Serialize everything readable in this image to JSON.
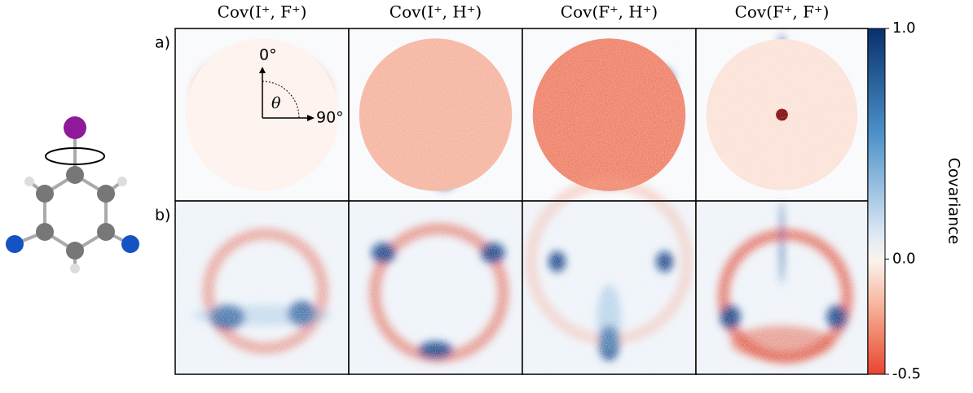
{
  "figure": {
    "columns": [
      "Cov(I⁺, F⁺)",
      "Cov(I⁺, H⁺)",
      "Cov(F⁺, H⁺)",
      "Cov(F⁺, F⁺)"
    ],
    "rows": [
      "a)",
      "b)"
    ],
    "annotations": {
      "zero": "0°",
      "ninety": "90°",
      "theta": "θ"
    }
  },
  "colorbar": {
    "label": "Covariance",
    "lim": [
      -0.5,
      1.0
    ],
    "ticks": [
      {
        "value": 1,
        "label": "1.0"
      },
      {
        "value": 0,
        "label": "0.0"
      },
      {
        "value": -0.5,
        "label": "-0.5"
      }
    ]
  }
}
